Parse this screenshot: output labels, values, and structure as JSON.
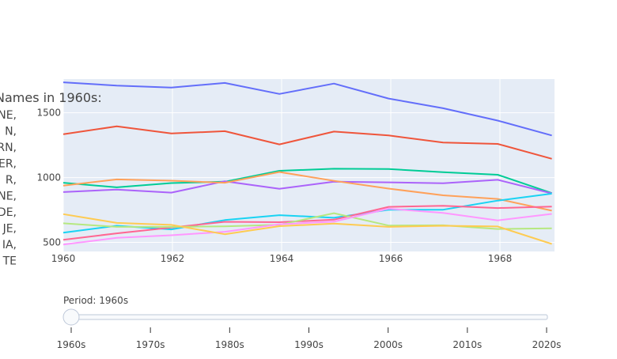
{
  "chart_data": {
    "type": "line",
    "title": "",
    "legend_title": "Names in 1960s:",
    "legend_items": [
      "NE,",
      "N,",
      "RN,",
      "ER,",
      "R,",
      "NE,",
      "DE,",
      "JE,",
      "IA,",
      "TE"
    ],
    "xlabel": "",
    "ylabel": "",
    "x": [
      1960,
      1960.98,
      1961.98,
      1962.96,
      1963.96,
      1964.96,
      1965.96,
      1966.96,
      1967.96,
      1968.95
    ],
    "xlim": [
      1960,
      1969
    ],
    "ylim": [
      430,
      1760
    ],
    "x_ticks": [
      1960,
      1962,
      1964,
      1966,
      1968
    ],
    "y_ticks": [
      500,
      1000,
      1500
    ],
    "grid": true,
    "series": [
      {
        "color": "#636efa",
        "values": [
          1735,
          1710,
          1695,
          1730,
          1645,
          1725,
          1610,
          1535,
          1440,
          1325
        ]
      },
      {
        "color": "#ef553b",
        "values": [
          1335,
          1395,
          1340,
          1358,
          1256,
          1355,
          1325,
          1270,
          1260,
          1145
        ]
      },
      {
        "color": "#00cc96",
        "values": [
          960,
          925,
          958,
          968,
          1052,
          1068,
          1066,
          1042,
          1022,
          880
        ]
      },
      {
        "color": "#ab63fa",
        "values": [
          888,
          908,
          884,
          972,
          913,
          968,
          963,
          956,
          983,
          878
        ]
      },
      {
        "color": "#ffa15a",
        "values": [
          938,
          986,
          976,
          960,
          1043,
          975,
          915,
          863,
          835,
          745
        ]
      },
      {
        "color": "#19d3f3",
        "values": [
          575,
          628,
          600,
          672,
          710,
          690,
          752,
          752,
          822,
          876
        ]
      },
      {
        "color": "#ff6692",
        "values": [
          520,
          570,
          614,
          659,
          656,
          675,
          774,
          782,
          765,
          776
        ]
      },
      {
        "color": "#b6e880",
        "values": [
          647,
          620,
          620,
          624,
          636,
          725,
          630,
          632,
          603,
          608
        ]
      },
      {
        "color": "#ff97ff",
        "values": [
          483,
          535,
          555,
          582,
          640,
          660,
          760,
          727,
          670,
          720
        ]
      },
      {
        "color": "#fecb52",
        "values": [
          718,
          650,
          635,
          563,
          625,
          645,
          620,
          628,
          623,
          488
        ]
      }
    ]
  },
  "slider": {
    "label": "Period: 1960s",
    "steps": [
      "1960s",
      "1970s",
      "1980s",
      "1990s",
      "2000s",
      "2010s",
      "2020s"
    ],
    "active_index": 0
  }
}
